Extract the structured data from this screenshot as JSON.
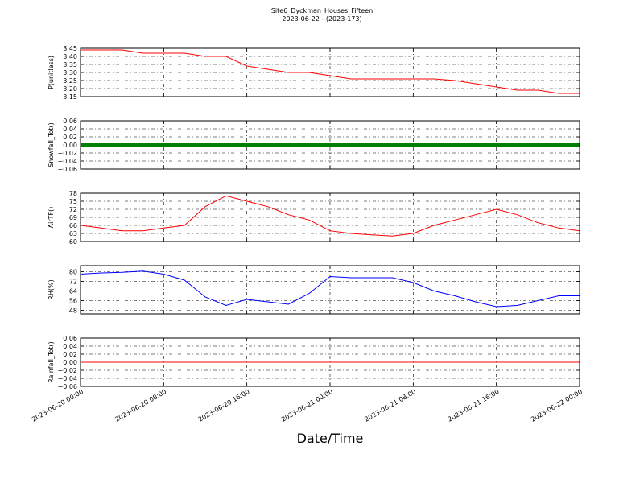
{
  "figure": {
    "title": "Site6_Dyckman_Houses_Fifteen",
    "subtitle": "2023-06-22 - (2023-173)",
    "xlabel": "Date/Time",
    "x": [
      "2023-06-20 00:00",
      "2023-06-20 02:00",
      "2023-06-20 04:00",
      "2023-06-20 06:00",
      "2023-06-20 08:00",
      "2023-06-20 10:00",
      "2023-06-20 12:00",
      "2023-06-20 14:00",
      "2023-06-20 16:00",
      "2023-06-20 18:00",
      "2023-06-20 20:00",
      "2023-06-20 22:00",
      "2023-06-21 00:00",
      "2023-06-21 02:00",
      "2023-06-21 04:00",
      "2023-06-21 06:00",
      "2023-06-21 08:00",
      "2023-06-21 10:00",
      "2023-06-21 12:00",
      "2023-06-21 14:00",
      "2023-06-21 16:00",
      "2023-06-21 18:00",
      "2023-06-21 20:00",
      "2023-06-21 22:00",
      "2023-06-22 00:00"
    ],
    "xlim": [
      "2023-06-20 00:00",
      "2023-06-22 00:00"
    ],
    "xticks": [
      "2023-06-20 00:00",
      "2023-06-20 08:00",
      "2023-06-20 16:00",
      "2023-06-21 00:00",
      "2023-06-21 08:00",
      "2023-06-21 16:00",
      "2023-06-22 00:00"
    ],
    "grid": true
  },
  "chart_data": [
    {
      "type": "line",
      "ylabel": "P(unitless)",
      "color": "#ff0000",
      "values": [
        3.44,
        3.44,
        3.44,
        3.42,
        3.42,
        3.42,
        3.4,
        3.4,
        3.34,
        3.32,
        3.3,
        3.3,
        3.28,
        3.26,
        3.26,
        3.26,
        3.26,
        3.26,
        3.25,
        3.23,
        3.21,
        3.19,
        3.19,
        3.17,
        3.17
      ],
      "ylim": [
        3.15,
        3.45
      ],
      "yticks": [
        3.15,
        {
          "value": 3.2,
          "label": "3.20"
        },
        3.25,
        {
          "value": 3.3,
          "label": "3.30"
        },
        3.35,
        {
          "value": 3.4,
          "label": "3.40"
        },
        3.45
      ]
    },
    {
      "type": "line",
      "ylabel": "Snowfall_Tot()",
      "color": "#008000",
      "values": [
        0,
        0,
        0,
        0,
        0,
        0,
        0,
        0,
        0,
        0,
        0,
        0,
        0,
        0,
        0,
        0,
        0,
        0,
        0,
        0,
        0,
        0,
        0,
        0,
        0
      ],
      "ylim": [
        -0.06,
        0.06
      ],
      "yticks": [
        {
          "value": -0.06,
          "label": "−0.06"
        },
        {
          "value": -0.04,
          "label": "−0.04"
        },
        {
          "value": -0.02,
          "label": "−0.02"
        },
        {
          "value": 0,
          "label": "0.00"
        },
        0.02,
        0.04,
        0.06
      ]
    },
    {
      "type": "line",
      "ylabel": "AirTF()",
      "color": "#ff0000",
      "values": [
        66,
        65,
        64,
        64,
        65,
        66,
        73,
        77,
        75,
        73,
        70,
        68,
        64,
        63,
        62.5,
        62,
        63,
        66,
        68,
        70,
        72,
        70,
        67,
        65,
        64
      ],
      "ylim": [
        60,
        78
      ],
      "yticks": [
        60,
        63,
        66,
        69,
        72,
        75,
        78
      ]
    },
    {
      "type": "line",
      "ylabel": "RH(%)",
      "color": "#0000ff",
      "values": [
        78,
        79,
        79.5,
        80.5,
        78,
        73,
        59,
        52,
        57,
        55,
        53,
        62,
        76,
        75,
        75,
        75,
        71,
        64,
        60,
        55,
        51,
        52,
        56,
        60,
        60
      ],
      "ylim": [
        45,
        85
      ],
      "yticks": [
        48,
        56,
        64,
        72,
        80
      ]
    },
    {
      "type": "line",
      "ylabel": "Rainfall_Tot()",
      "color": "#ff0000",
      "values": [
        0,
        0,
        0,
        0,
        0,
        0,
        0,
        0,
        0,
        0,
        0,
        0,
        0,
        0,
        0,
        0,
        0,
        0,
        0,
        0,
        0,
        0,
        0,
        0,
        0
      ],
      "ylim": [
        -0.06,
        0.06
      ],
      "yticks": [
        {
          "value": -0.06,
          "label": "−0.06"
        },
        {
          "value": -0.04,
          "label": "−0.04"
        },
        {
          "value": -0.02,
          "label": "−0.02"
        },
        {
          "value": 0,
          "label": "0.00"
        },
        0.02,
        0.04,
        0.06
      ]
    }
  ]
}
